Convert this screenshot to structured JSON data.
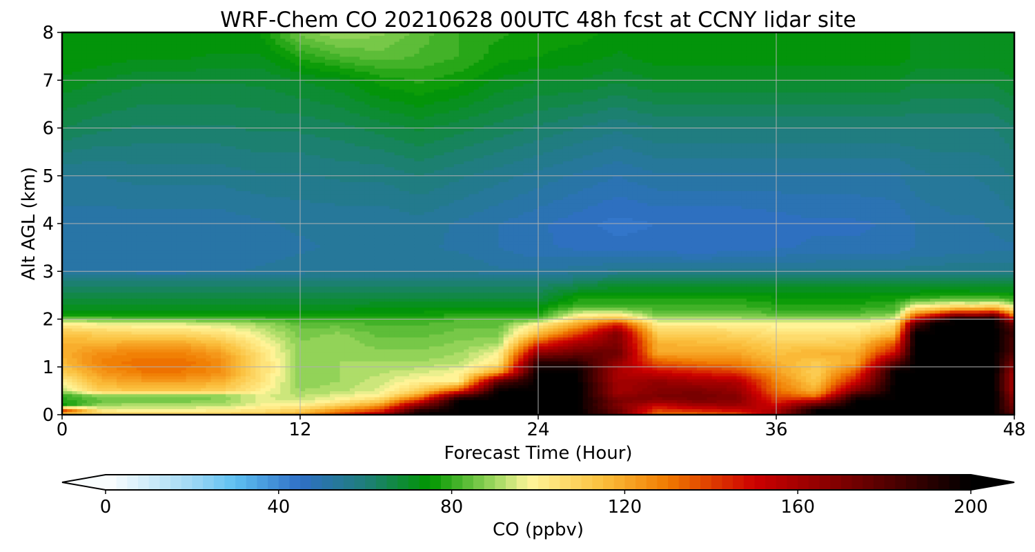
{
  "figure": {
    "title": "WRF-Chem CO  20210628 00UTC 48h fcst at CCNY lidar site"
  },
  "chart_data": {
    "type": "heatmap",
    "title": "WRF-Chem CO  20210628 00UTC 48h fcst at CCNY lidar site",
    "xlabel": "Forecast Time (Hour)",
    "ylabel": "Alt AGL (km)",
    "xlim": [
      0,
      48
    ],
    "ylim": [
      0,
      8
    ],
    "xticks": [
      0,
      12,
      24,
      36,
      48
    ],
    "yticks": [
      0,
      1,
      2,
      3,
      4,
      5,
      6,
      7,
      8
    ],
    "grid": true,
    "colorbar": {
      "label": "CO  (ppbv)",
      "range": [
        0,
        200
      ],
      "ticks": [
        0,
        40,
        80,
        120,
        160,
        200
      ],
      "extend": "both",
      "stops": [
        {
          "v": 0,
          "color": "#ffffff"
        },
        {
          "v": 20,
          "color": "#9fd8f4"
        },
        {
          "v": 30,
          "color": "#5ec0f2"
        },
        {
          "v": 45,
          "color": "#2f6fc6"
        },
        {
          "v": 60,
          "color": "#1f7e7a"
        },
        {
          "v": 75,
          "color": "#009600"
        },
        {
          "v": 90,
          "color": "#9fd860"
        },
        {
          "v": 98,
          "color": "#fff59a"
        },
        {
          "v": 115,
          "color": "#fbbf3c"
        },
        {
          "v": 130,
          "color": "#f07a00"
        },
        {
          "v": 150,
          "color": "#cd0000"
        },
        {
          "v": 175,
          "color": "#6a0000"
        },
        {
          "v": 200,
          "color": "#000000"
        }
      ]
    },
    "y": [
      0.0,
      0.1,
      0.2,
      0.3,
      0.4,
      0.5,
      0.7,
      0.9,
      1.1,
      1.3,
      1.5,
      1.7,
      1.9,
      2.0,
      2.1,
      2.2,
      2.3,
      2.4,
      2.5,
      2.6,
      2.7,
      2.8,
      3.0,
      3.5,
      4.0,
      5.0,
      6.0,
      7.0,
      7.5,
      8.0
    ],
    "x": [
      0,
      2,
      4,
      6,
      8,
      10,
      12,
      14,
      16,
      18,
      20,
      22,
      24,
      26,
      28,
      30,
      32,
      34,
      36,
      38,
      40,
      42,
      43,
      44,
      45,
      46,
      47,
      48
    ],
    "z": [
      [
        110,
        140,
        75,
        78,
        80,
        90,
        100,
        110,
        116,
        118,
        118,
        114,
        100,
        86,
        76,
        72,
        70,
        68,
        66,
        64,
        62,
        60,
        52,
        50,
        51,
        55,
        65,
        72,
        75,
        75
      ],
      [
        110,
        100,
        90,
        84,
        88,
        110,
        118,
        124,
        128,
        126,
        118,
        110,
        98,
        86,
        76,
        72,
        70,
        68,
        66,
        64,
        62,
        60,
        52,
        50,
        51,
        55,
        63,
        70,
        74,
        75
      ],
      [
        110,
        98,
        92,
        86,
        86,
        112,
        122,
        130,
        132,
        128,
        120,
        108,
        96,
        84,
        76,
        72,
        70,
        68,
        66,
        64,
        62,
        60,
        51,
        50,
        51,
        56,
        62,
        68,
        73,
        75
      ],
      [
        110,
        98,
        92,
        86,
        86,
        112,
        122,
        130,
        132,
        128,
        120,
        108,
        96,
        84,
        76,
        72,
        70,
        68,
        66,
        64,
        62,
        60,
        51,
        50,
        51,
        56,
        62,
        68,
        73,
        75
      ],
      [
        110,
        100,
        92,
        88,
        88,
        110,
        118,
        126,
        126,
        122,
        114,
        104,
        94,
        84,
        76,
        72,
        70,
        68,
        66,
        64,
        62,
        60,
        52,
        50,
        51,
        56,
        62,
        68,
        72,
        75
      ],
      [
        112,
        104,
        98,
        96,
        96,
        100,
        104,
        106,
        106,
        104,
        100,
        96,
        90,
        82,
        76,
        72,
        70,
        68,
        66,
        64,
        62,
        60,
        53,
        51,
        52,
        57,
        63,
        68,
        72,
        75
      ],
      [
        118,
        110,
        100,
        94,
        92,
        90,
        88,
        88,
        88,
        88,
        88,
        86,
        84,
        80,
        76,
        72,
        70,
        68,
        66,
        64,
        62,
        60,
        54,
        52,
        53,
        57,
        63,
        70,
        78,
        86
      ],
      [
        140,
        126,
        110,
        100,
        96,
        92,
        90,
        90,
        90,
        90,
        90,
        88,
        84,
        80,
        76,
        72,
        70,
        68,
        66,
        64,
        62,
        60,
        55,
        53,
        53,
        58,
        64,
        72,
        82,
        90
      ],
      [
        160,
        140,
        124,
        110,
        100,
        96,
        94,
        92,
        90,
        88,
        86,
        84,
        82,
        80,
        76,
        74,
        72,
        68,
        66,
        64,
        62,
        60,
        55,
        53,
        53,
        58,
        66,
        76,
        84,
        88
      ],
      [
        200,
        190,
        168,
        145,
        125,
        110,
        100,
        94,
        90,
        88,
        86,
        84,
        82,
        80,
        76,
        74,
        72,
        68,
        66,
        64,
        62,
        60,
        55,
        53,
        54,
        60,
        68,
        78,
        82,
        84
      ],
      [
        200,
        200,
        200,
        200,
        180,
        140,
        100,
        98,
        92,
        90,
        88,
        86,
        84,
        82,
        78,
        74,
        72,
        68,
        66,
        64,
        62,
        60,
        55,
        52,
        52,
        58,
        66,
        76,
        80,
        80
      ],
      [
        200,
        200,
        200,
        200,
        200,
        200,
        178,
        120,
        102,
        98,
        90,
        86,
        84,
        82,
        78,
        74,
        72,
        68,
        66,
        64,
        62,
        60,
        53,
        50,
        50,
        56,
        64,
        72,
        76,
        78
      ],
      [
        200,
        200,
        200,
        200,
        200,
        200,
        200,
        200,
        190,
        165,
        140,
        115,
        100,
        84,
        78,
        74,
        72,
        68,
        66,
        64,
        62,
        60,
        53,
        48,
        48,
        54,
        62,
        70,
        75,
        76
      ],
      [
        200,
        200,
        200,
        200,
        200,
        200,
        200,
        200,
        190,
        175,
        160,
        140,
        120,
        108,
        98,
        88,
        80,
        78,
        75,
        70,
        66,
        62,
        54,
        47,
        46,
        52,
        60,
        70,
        74,
        76
      ],
      [
        175,
        175,
        170,
        172,
        165,
        160,
        160,
        158,
        165,
        175,
        170,
        170,
        145,
        118,
        100,
        88,
        80,
        78,
        76,
        72,
        70,
        66,
        56,
        46,
        44,
        50,
        58,
        68,
        72,
        74
      ],
      [
        130,
        140,
        150,
        165,
        170,
        168,
        165,
        150,
        135,
        120,
        118,
        110,
        100,
        92,
        86,
        82,
        80,
        78,
        76,
        72,
        70,
        66,
        56,
        46,
        45,
        52,
        60,
        70,
        74,
        74
      ],
      [
        130,
        145,
        160,
        170,
        172,
        170,
        160,
        145,
        130,
        120,
        116,
        110,
        100,
        92,
        86,
        82,
        80,
        78,
        76,
        72,
        70,
        66,
        56,
        45,
        45,
        52,
        60,
        70,
        74,
        74
      ],
      [
        135,
        150,
        162,
        168,
        168,
        165,
        158,
        140,
        128,
        120,
        115,
        108,
        100,
        92,
        86,
        82,
        80,
        78,
        76,
        72,
        70,
        66,
        56,
        46,
        45,
        52,
        60,
        70,
        74,
        74
      ],
      [
        160,
        158,
        150,
        142,
        138,
        132,
        128,
        122,
        118,
        114,
        110,
        104,
        98,
        90,
        84,
        80,
        78,
        76,
        74,
        72,
        70,
        66,
        56,
        47,
        46,
        52,
        60,
        70,
        74,
        74
      ],
      [
        200,
        200,
        180,
        155,
        130,
        118,
        112,
        110,
        112,
        118,
        110,
        104,
        98,
        90,
        84,
        80,
        78,
        76,
        74,
        72,
        70,
        66,
        56,
        48,
        47,
        52,
        60,
        70,
        74,
        74
      ],
      [
        200,
        200,
        200,
        200,
        190,
        170,
        150,
        135,
        120,
        118,
        112,
        104,
        98,
        90,
        84,
        80,
        78,
        76,
        74,
        72,
        70,
        66,
        56,
        48,
        47,
        52,
        60,
        70,
        74,
        74
      ],
      [
        200,
        200,
        200,
        200,
        200,
        200,
        200,
        200,
        178,
        150,
        135,
        116,
        105,
        96,
        88,
        82,
        80,
        77,
        75,
        72,
        70,
        66,
        56,
        48,
        48,
        52,
        60,
        70,
        74,
        74
      ],
      [
        200,
        200,
        200,
        200,
        200,
        200,
        200,
        200,
        200,
        200,
        200,
        200,
        180,
        150,
        130,
        110,
        95,
        84,
        76,
        72,
        70,
        66,
        57,
        50,
        50,
        54,
        60,
        68,
        72,
        72
      ],
      [
        200,
        200,
        200,
        200,
        200,
        200,
        200,
        200,
        200,
        200,
        200,
        200,
        200,
        180,
        145,
        115,
        98,
        86,
        77,
        73,
        70,
        66,
        57,
        50,
        51,
        55,
        60,
        68,
        72,
        72
      ],
      [
        200,
        200,
        200,
        200,
        200,
        200,
        200,
        200,
        200,
        200,
        200,
        200,
        200,
        200,
        165,
        125,
        102,
        88,
        78,
        73,
        70,
        66,
        57,
        51,
        52,
        55,
        60,
        68,
        72,
        72
      ],
      [
        200,
        200,
        200,
        200,
        200,
        200,
        200,
        200,
        200,
        200,
        200,
        200,
        200,
        200,
        160,
        125,
        100,
        86,
        78,
        72,
        70,
        66,
        57,
        51,
        52,
        55,
        60,
        68,
        72,
        72
      ],
      [
        200,
        200,
        200,
        200,
        200,
        200,
        200,
        200,
        200,
        200,
        200,
        200,
        200,
        200,
        170,
        130,
        105,
        88,
        78,
        72,
        70,
        66,
        57,
        52,
        53,
        56,
        60,
        68,
        72,
        72
      ],
      [
        180,
        175,
        170,
        168,
        165,
        160,
        158,
        160,
        170,
        180,
        180,
        185,
        175,
        150,
        125,
        105,
        92,
        82,
        76,
        72,
        70,
        66,
        57,
        52,
        54,
        58,
        62,
        70,
        72,
        72
      ]
    ]
  }
}
